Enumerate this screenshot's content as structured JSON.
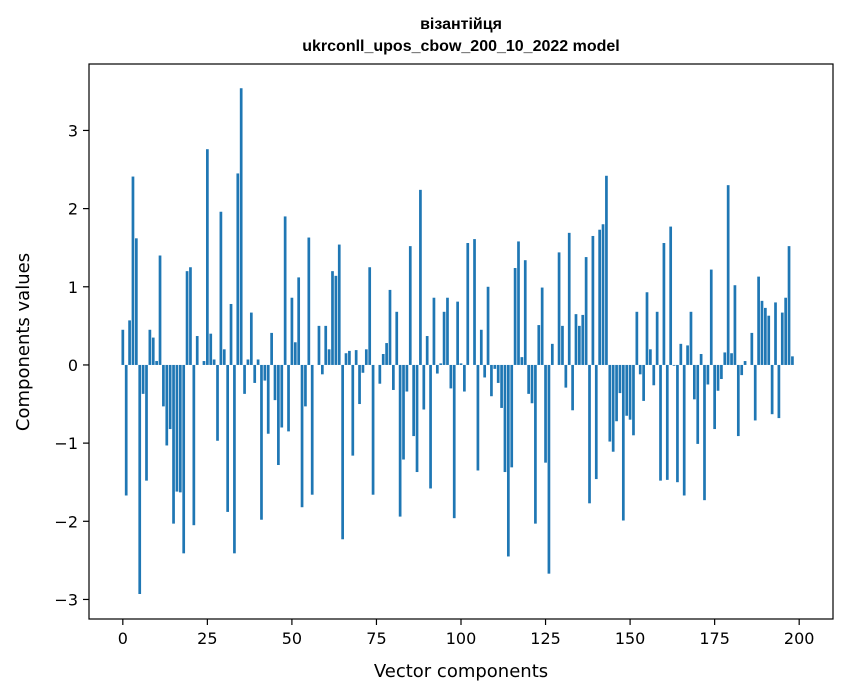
{
  "chart_data": {
    "type": "bar",
    "title": "візантійця",
    "subtitle": "ukrconll_upos_cbow_200_10_2022 model",
    "xlabel": "Vector components",
    "ylabel": "Components values",
    "xlim": [
      -10,
      210
    ],
    "ylim": [
      -3.25,
      3.85
    ],
    "xticks": [
      0,
      25,
      50,
      75,
      100,
      125,
      150,
      175,
      200
    ],
    "yticks": [
      -3,
      -2,
      -1,
      0,
      1,
      2,
      3
    ],
    "grid": false,
    "legend": "none",
    "bar_color": "#1f77b4",
    "values": [
      0.45,
      -1.67,
      0.57,
      2.41,
      1.62,
      -2.93,
      -0.37,
      -1.48,
      0.45,
      0.35,
      0.05,
      1.4,
      -0.53,
      -1.03,
      -0.82,
      -2.03,
      -1.62,
      -1.63,
      -2.41,
      1.2,
      1.25,
      -2.05,
      0.37,
      0.0,
      0.05,
      2.76,
      0.4,
      0.07,
      -0.97,
      1.96,
      0.2,
      -1.88,
      0.78,
      -2.41,
      2.45,
      3.54,
      -0.37,
      0.07,
      0.67,
      -0.23,
      0.07,
      -1.98,
      -0.2,
      -0.88,
      0.41,
      -0.45,
      -1.28,
      -0.8,
      1.9,
      -0.85,
      0.86,
      0.29,
      1.12,
      -1.82,
      -0.53,
      1.63,
      -1.66,
      0.0,
      0.5,
      -0.12,
      0.5,
      0.2,
      1.2,
      1.14,
      1.54,
      -2.23,
      0.15,
      0.18,
      -1.16,
      0.19,
      -0.5,
      -0.1,
      0.2,
      1.25,
      -1.66,
      0.0,
      -0.24,
      0.14,
      0.28,
      0.96,
      -0.32,
      0.68,
      -1.94,
      -1.21,
      -0.34,
      1.52,
      -0.91,
      -1.37,
      2.24,
      -0.57,
      0.37,
      -1.58,
      0.86,
      -0.11,
      0.02,
      0.68,
      0.86,
      -0.3,
      -1.96,
      0.81,
      0.02,
      -0.34,
      1.56,
      0.0,
      1.61,
      -1.35,
      0.45,
      -0.16,
      1.0,
      -0.4,
      -0.05,
      -0.23,
      -0.55,
      -1.37,
      -2.45,
      -1.31,
      1.24,
      1.58,
      0.1,
      1.34,
      -0.37,
      -0.49,
      -2.03,
      0.51,
      0.99,
      -1.25,
      -2.67,
      0.27,
      0.0,
      1.44,
      0.5,
      -0.29,
      1.69,
      -0.58,
      0.65,
      0.5,
      0.64,
      1.38,
      -1.77,
      1.65,
      -1.46,
      1.73,
      1.8,
      2.42,
      -0.98,
      -1.11,
      -0.72,
      -0.36,
      -1.99,
      -0.65,
      -0.7,
      -0.9,
      0.68,
      -0.12,
      -0.46,
      0.93,
      0.2,
      -0.26,
      0.68,
      -1.48,
      1.56,
      -1.47,
      1.77,
      -0.01,
      -1.5,
      0.27,
      -1.67,
      0.25,
      0.68,
      -0.44,
      -1.01,
      0.14,
      -1.73,
      -0.25,
      1.22,
      -0.82,
      -0.33,
      -0.18,
      0.16,
      2.3,
      0.15,
      1.02,
      -0.91,
      -0.13,
      0.05,
      0.0,
      0.41,
      -0.71,
      1.13,
      0.82,
      0.73,
      0.63,
      -0.63,
      0.8,
      -0.68,
      0.67,
      0.86,
      1.52,
      0.11
    ]
  }
}
